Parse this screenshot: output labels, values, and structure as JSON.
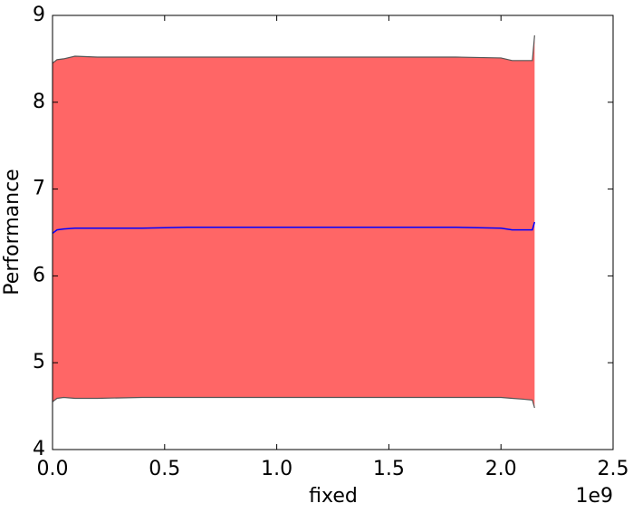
{
  "chart_data": {
    "type": "line",
    "x_label": "fixed",
    "y_label": "Performance",
    "x_offset_label": "1e9",
    "x": [
      0,
      20000000,
      50000000,
      100000000,
      200000000,
      400000000,
      600000000,
      800000000,
      1000000000,
      1200000000,
      1400000000,
      1600000000,
      1800000000,
      2000000000,
      2050000000,
      2100000000,
      2140000000,
      2150000000
    ],
    "series": [
      {
        "color": "#0000ff",
        "fill_color": "#ff6666",
        "edge_color": "#555555",
        "values": [
          6.49,
          6.53,
          6.54,
          6.55,
          6.55,
          6.55,
          6.56,
          6.56,
          6.56,
          6.56,
          6.56,
          6.56,
          6.56,
          6.55,
          6.53,
          6.53,
          6.53,
          6.62
        ],
        "upper": [
          8.45,
          8.49,
          8.5,
          8.53,
          8.52,
          8.52,
          8.52,
          8.52,
          8.52,
          8.52,
          8.52,
          8.52,
          8.52,
          8.51,
          8.48,
          8.48,
          8.48,
          8.77
        ],
        "lower": [
          4.55,
          4.59,
          4.6,
          4.59,
          4.59,
          4.6,
          4.6,
          4.6,
          4.6,
          4.6,
          4.6,
          4.6,
          4.6,
          4.6,
          4.59,
          4.58,
          4.57,
          4.48
        ]
      }
    ],
    "xlim": [
      0,
      2500000000
    ],
    "xticks": [
      {
        "value": 0,
        "label": "0.0"
      },
      {
        "value": 500000000,
        "label": "0.5"
      },
      {
        "value": 1000000000,
        "label": "1.0"
      },
      {
        "value": 1500000000,
        "label": "1.5"
      },
      {
        "value": 2000000000,
        "label": "2.0"
      },
      {
        "value": 2500000000,
        "label": "2.5"
      }
    ],
    "ylim": [
      4,
      9
    ],
    "yticks": [
      4,
      5,
      6,
      7,
      8,
      9
    ],
    "grid": false
  }
}
